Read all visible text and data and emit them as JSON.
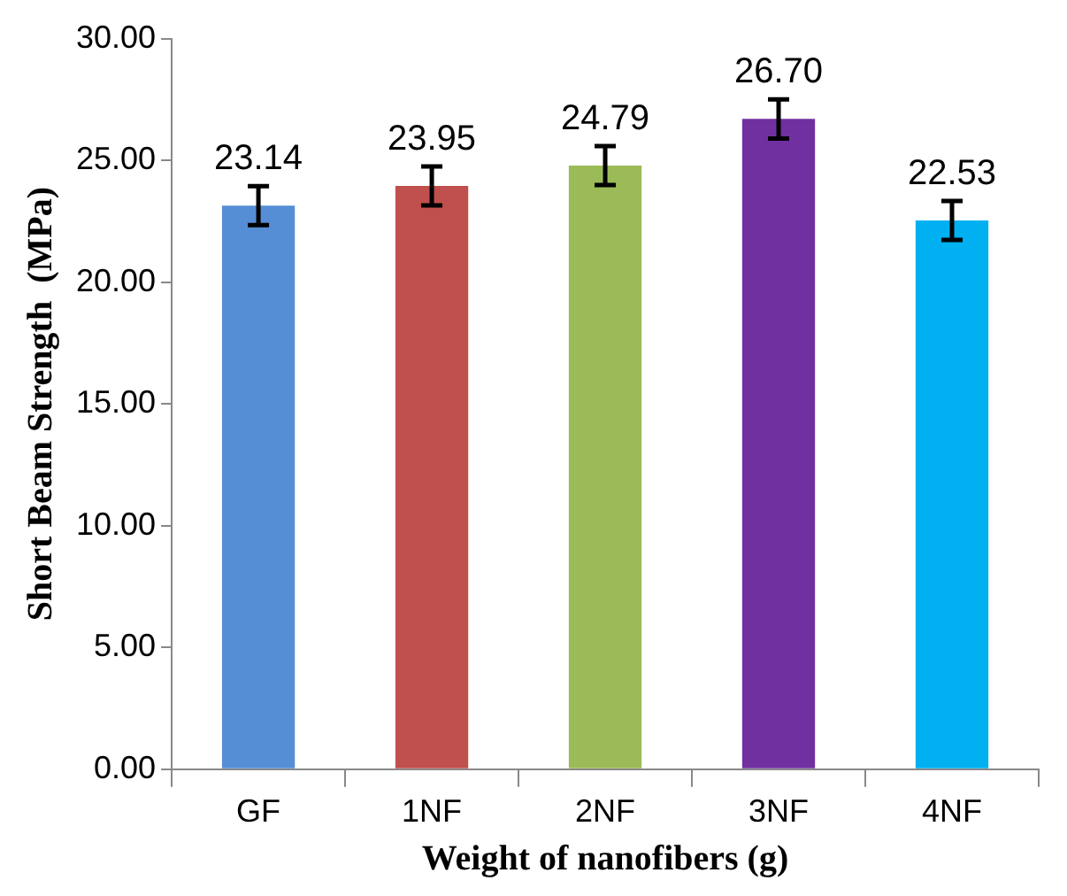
{
  "chart_data": {
    "type": "bar",
    "xlabel": "Weight of nanofibers (g)",
    "ylabel": "Short Beam Strength  (MPa)",
    "categories": [
      "GF",
      "1NF",
      "2NF",
      "3NF",
      "4NF"
    ],
    "values": [
      23.14,
      23.95,
      24.79,
      26.7,
      22.53
    ],
    "colors": [
      "#558ed5",
      "#c0504d",
      "#9bbb59",
      "#7030a0",
      "#00b0f0"
    ],
    "errors": [
      0.8,
      0.8,
      0.8,
      0.8,
      0.8
    ],
    "value_labels": [
      "23.14",
      "23.95",
      "24.79",
      "26.70",
      "22.53"
    ],
    "ylim": [
      0,
      30
    ],
    "yticks": [
      {
        "value": 0,
        "label": "0.00"
      },
      {
        "value": 5,
        "label": "5.00"
      },
      {
        "value": 10,
        "label": "10.00"
      },
      {
        "value": 15,
        "label": "15.00"
      },
      {
        "value": 20,
        "label": "20.00"
      },
      {
        "value": 25,
        "label": "25.00"
      },
      {
        "value": 30,
        "label": "30.00"
      }
    ],
    "grid": false,
    "legend": false
  }
}
